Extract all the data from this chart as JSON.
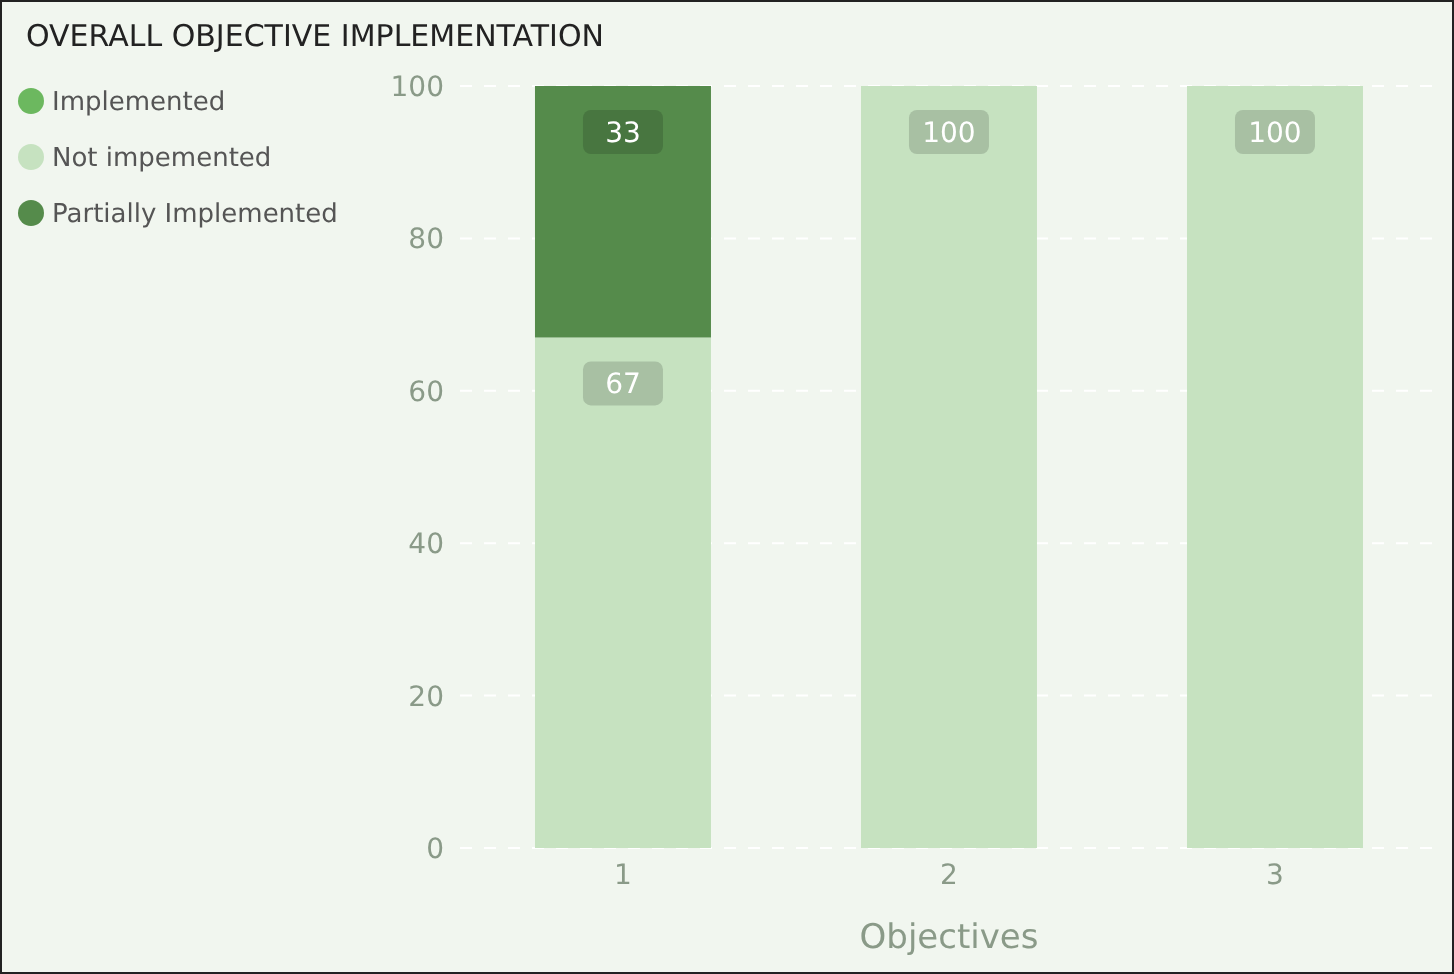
{
  "chart_data": {
    "type": "bar",
    "title": "OVERALL OBJECTIVE IMPLEMENTATION",
    "xlabel": "Objectives",
    "categories": [
      "1",
      "2",
      "3"
    ],
    "series": [
      {
        "name": "Implemented",
        "color": "#6cb85f",
        "values": [
          0,
          0,
          0
        ],
        "value_labels": [
          null,
          null,
          null
        ]
      },
      {
        "name": "Not impemented",
        "color": "#c6e2c0",
        "values": [
          67,
          100,
          100
        ],
        "value_labels": [
          "67",
          "100",
          "100"
        ]
      },
      {
        "name": "Partially Implemented",
        "color": "#558b4b",
        "values": [
          33,
          0,
          0
        ],
        "value_labels": [
          "33",
          null,
          null
        ]
      }
    ],
    "stacked": true,
    "ylim": [
      0,
      100
    ],
    "yticks": [
      0,
      20,
      40,
      60,
      80,
      100
    ],
    "grid": "y",
    "legend": "left"
  }
}
